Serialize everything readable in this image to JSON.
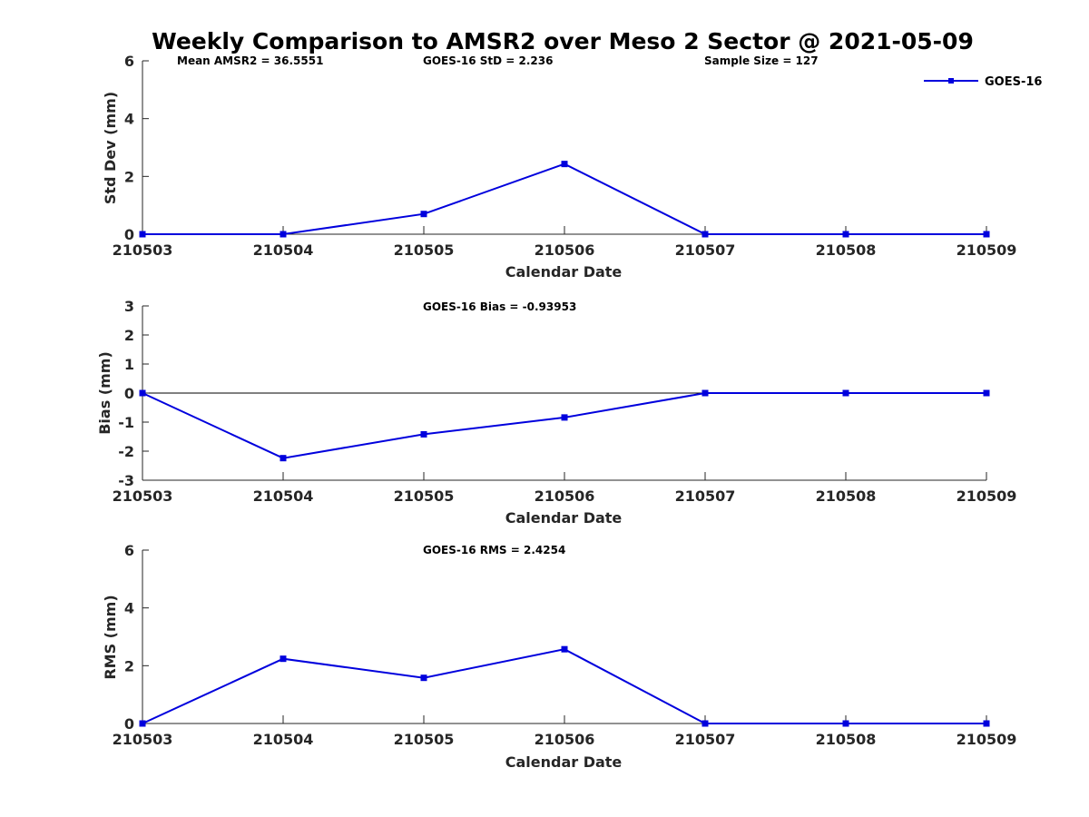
{
  "chart_data": {
    "title": "Weekly Comparison to AMSR2 over Meso 2 Sector @ 2021-05-09",
    "series_color": "#0000dd",
    "legend": {
      "label": "GOES-16",
      "position": "top-right"
    },
    "panels": [
      {
        "type": "line",
        "name": "std-dev",
        "categories": [
          "210503",
          "210504",
          "210505",
          "210506",
          "210507",
          "210508",
          "210509"
        ],
        "series": [
          {
            "name": "GOES-16",
            "values": [
              0,
              0,
              0.7,
              2.43,
              0,
              0,
              0
            ]
          }
        ],
        "ylabel": "Std Dev (mm)",
        "xlabel": "Calendar Date",
        "ylim": [
          0,
          6
        ],
        "yticks": [
          0,
          2,
          4,
          6
        ],
        "zero_line": false,
        "annotations": [
          "Mean AMSR2 = 36.5551",
          "GOES-16 StD = 2.236",
          "Sample Size = 127"
        ]
      },
      {
        "type": "line",
        "name": "bias",
        "categories": [
          "210503",
          "210504",
          "210505",
          "210506",
          "210507",
          "210508",
          "210509"
        ],
        "series": [
          {
            "name": "GOES-16",
            "values": [
              0,
              -2.24,
              -1.42,
              -0.84,
              0,
              0,
              0
            ]
          }
        ],
        "ylabel": "Bias (mm)",
        "xlabel": "Calendar Date",
        "ylim": [
          -3,
          3
        ],
        "yticks": [
          -3,
          -2,
          -1,
          0,
          1,
          2,
          3
        ],
        "zero_line": true,
        "annotations": [
          "GOES-16 Bias  = -0.93953"
        ]
      },
      {
        "type": "line",
        "name": "rms",
        "categories": [
          "210503",
          "210504",
          "210505",
          "210506",
          "210507",
          "210508",
          "210509"
        ],
        "series": [
          {
            "name": "GOES-16",
            "values": [
              0,
              2.24,
              1.58,
              2.57,
              0,
              0,
              0
            ]
          }
        ],
        "ylabel": "RMS (mm)",
        "xlabel": "Calendar Date",
        "ylim": [
          0,
          6
        ],
        "yticks": [
          0,
          2,
          4,
          6
        ],
        "zero_line": false,
        "annotations": [
          "GOES-16 RMS = 2.4254"
        ]
      }
    ]
  }
}
